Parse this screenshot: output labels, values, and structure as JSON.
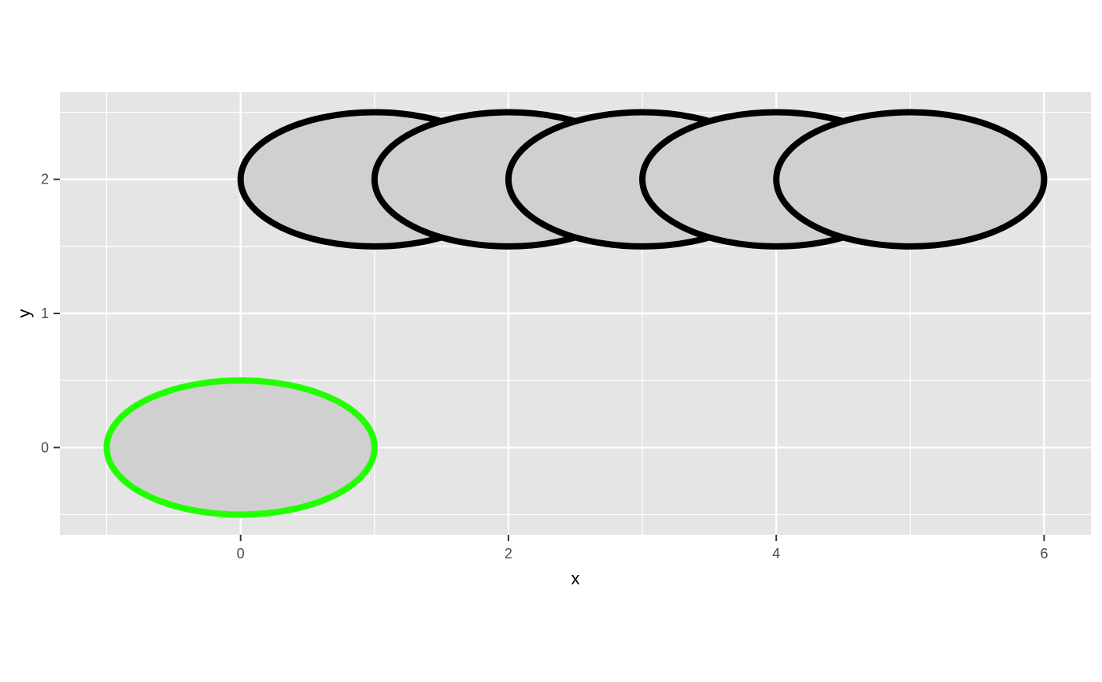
{
  "chart_data": {
    "type": "scatter",
    "title": "",
    "xlabel": "x",
    "ylabel": "y",
    "xlim": [
      -1.35,
      6.35
    ],
    "ylim": [
      -0.65,
      2.65
    ],
    "x_ticks": [
      0,
      2,
      4,
      6
    ],
    "y_ticks": [
      0,
      1,
      2
    ],
    "x_minor": [
      -1,
      1,
      3,
      5
    ],
    "y_minor": [
      -0.5,
      0.5,
      1.5,
      2.5
    ],
    "x_tick_labels": [
      "0",
      "2",
      "4",
      "6"
    ],
    "y_tick_labels": [
      "0",
      "1",
      "2"
    ],
    "grid": true,
    "panel_color": "#e5e5e5",
    "gridline_color": "#ffffff",
    "series": [
      {
        "points": [
          {
            "x": 1,
            "y": 2
          },
          {
            "x": 2,
            "y": 2
          },
          {
            "x": 3,
            "y": 2
          },
          {
            "x": 4,
            "y": 2
          },
          {
            "x": 5,
            "y": 2
          }
        ],
        "rx": 1,
        "ry": 0.5,
        "fill": "#d0d0d0",
        "stroke": "#000000"
      },
      {
        "points": [
          {
            "x": 0,
            "y": 0
          }
        ],
        "rx": 1,
        "ry": 0.5,
        "fill": "#d0d0d0",
        "stroke": "#22ff00"
      }
    ]
  }
}
